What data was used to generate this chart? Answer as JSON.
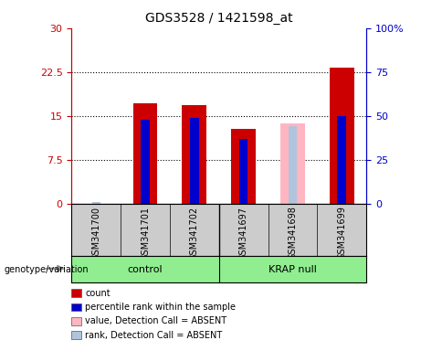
{
  "title": "GDS3528 / 1421598_at",
  "samples": [
    "GSM341700",
    "GSM341701",
    "GSM341702",
    "GSM341697",
    "GSM341698",
    "GSM341699"
  ],
  "count_values": [
    0.0,
    17.2,
    16.9,
    12.8,
    0.0,
    23.2
  ],
  "count_absent_values": [
    0.0,
    0.0,
    0.0,
    0.0,
    13.7,
    0.0
  ],
  "percentile_values": [
    0.0,
    48.0,
    49.0,
    37.0,
    0.0,
    50.0
  ],
  "percentile_absent_values": [
    1.0,
    0.0,
    0.0,
    0.0,
    44.0,
    0.0
  ],
  "ylim_left": [
    0,
    30
  ],
  "ylim_right": [
    0,
    100
  ],
  "yticks_left": [
    0,
    7.5,
    15,
    22.5,
    30
  ],
  "yticks_right": [
    0,
    25,
    50,
    75,
    100
  ],
  "ytick_labels_left": [
    "0",
    "7.5",
    "15",
    "22.5",
    "30"
  ],
  "ytick_labels_right": [
    "0",
    "25",
    "50",
    "75",
    "100%"
  ],
  "color_count": "#cc0000",
  "color_percentile": "#0000cc",
  "color_count_absent": "#ffb6c1",
  "color_percentile_absent": "#b0c4de",
  "group_label": "genotype/variation",
  "control_label": "control",
  "krap_label": "KRAP null",
  "legend_items": [
    {
      "label": "count",
      "color": "#cc0000"
    },
    {
      "label": "percentile rank within the sample",
      "color": "#0000cc"
    },
    {
      "label": "value, Detection Call = ABSENT",
      "color": "#ffb6c1"
    },
    {
      "label": "rank, Detection Call = ABSENT",
      "color": "#b0c4de"
    }
  ]
}
